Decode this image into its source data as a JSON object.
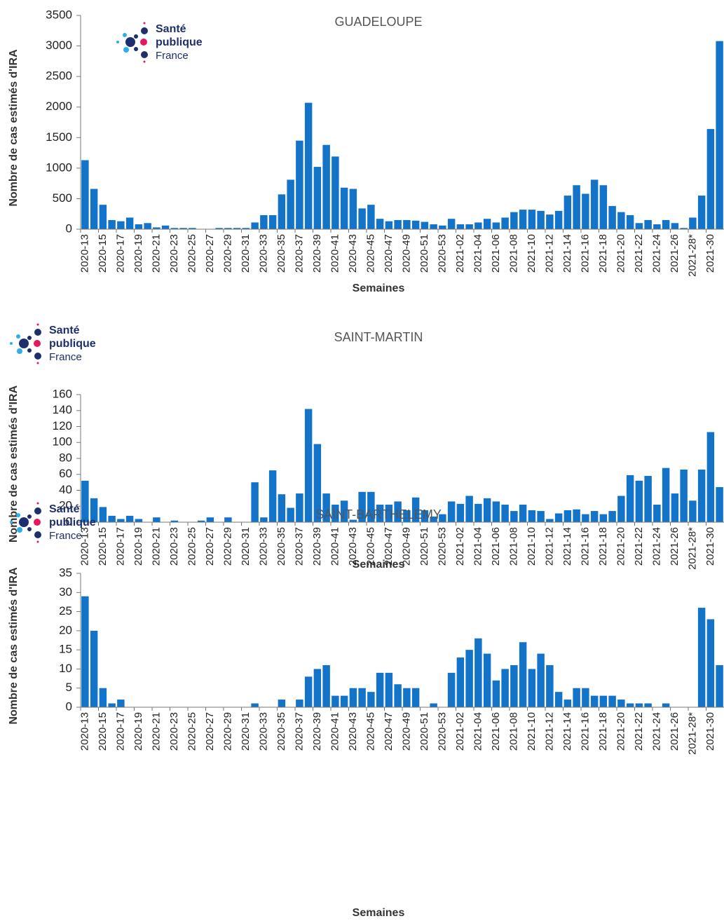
{
  "logo": [
    "Santé",
    "publique",
    "France"
  ],
  "chart_data": [
    {
      "type": "bar",
      "title": "GUADELOUPE",
      "x_label": "Semaines",
      "y_label": "Nombre de cas estimés d'IRA",
      "color": "#1273c9",
      "categories": [
        "2020-13",
        null,
        "2020-15",
        null,
        "2020-17",
        null,
        "2020-19",
        null,
        "2020-21",
        null,
        "2020-23",
        null,
        "2020-25",
        null,
        "2020-27",
        null,
        "2020-29",
        null,
        "2020-31",
        null,
        "2020-33",
        null,
        "2020-35",
        null,
        "2020-37",
        null,
        "2020-39",
        null,
        "2020-41",
        null,
        "2020-43",
        null,
        "2020-45",
        null,
        "2020-47",
        null,
        "2020-49",
        null,
        "2020-51",
        null,
        "2020-53",
        null,
        "2021-02",
        null,
        "2021-04",
        null,
        "2021-06",
        null,
        "2021-08",
        null,
        "2021-10",
        null,
        "2021-12",
        null,
        "2021-14",
        null,
        "2021-16",
        null,
        "2021-18",
        null,
        "2021-20",
        null,
        "2021-22",
        null,
        "2021-24",
        null,
        "2021-26",
        null,
        "2021-28*",
        null,
        "2021-30",
        null
      ],
      "values": [
        1130,
        660,
        400,
        150,
        130,
        190,
        80,
        100,
        30,
        60,
        20,
        20,
        20,
        0,
        0,
        20,
        20,
        20,
        20,
        110,
        230,
        230,
        570,
        810,
        1450,
        2070,
        1020,
        1380,
        1190,
        680,
        660,
        340,
        400,
        170,
        130,
        150,
        150,
        140,
        120,
        80,
        60,
        170,
        80,
        80,
        110,
        170,
        110,
        190,
        280,
        320,
        320,
        300,
        240,
        300,
        550,
        720,
        580,
        810,
        720,
        380,
        280,
        230,
        100,
        150,
        80,
        150,
        100,
        20,
        190,
        550,
        1640,
        3080
      ],
      "ylim": [
        0,
        3500
      ],
      "yticks": [
        0,
        500,
        1000,
        1500,
        2000,
        2500,
        3000,
        3500
      ]
    },
    {
      "type": "bar",
      "title": "SAINT-MARTIN",
      "x_label": "Semaines",
      "y_label": "Nombre de cas estimés d'IRA",
      "color": "#1273c9",
      "categories": [
        "2020-13",
        null,
        "2020-15",
        null,
        "2020-17",
        null,
        "2020-19",
        null,
        "2020-21",
        null,
        "2020-23",
        null,
        "2020-25",
        null,
        "2020-27",
        null,
        "2020-29",
        null,
        "2020-31",
        null,
        "2020-33",
        null,
        "2020-35",
        null,
        "2020-37",
        null,
        "2020-39",
        null,
        "2020-41",
        null,
        "2020-43",
        null,
        "2020-45",
        null,
        "2020-47",
        null,
        "2020-49",
        null,
        "2020-51",
        null,
        "2020-53",
        null,
        "2021-02",
        null,
        "2021-04",
        null,
        "2021-06",
        null,
        "2021-08",
        null,
        "2021-10",
        null,
        "2021-12",
        null,
        "2021-14",
        null,
        "2021-16",
        null,
        "2021-18",
        null,
        "2021-20",
        null,
        "2021-22",
        null,
        "2021-24",
        null,
        "2021-26",
        null,
        "2021-28*",
        null,
        "2021-30",
        null
      ],
      "values": [
        52,
        30,
        19,
        8,
        4,
        8,
        4,
        0,
        6,
        0,
        2,
        0,
        0,
        2,
        6,
        0,
        6,
        0,
        0,
        50,
        6,
        65,
        35,
        18,
        36,
        142,
        98,
        36,
        22,
        27,
        3,
        38,
        38,
        22,
        22,
        26,
        15,
        31,
        15,
        7,
        10,
        26,
        23,
        33,
        23,
        30,
        26,
        22,
        14,
        22,
        15,
        14,
        4,
        11,
        15,
        16,
        10,
        14,
        10,
        14,
        33,
        59,
        52,
        58,
        22,
        68,
        36,
        66,
        27,
        66,
        113,
        44
      ],
      "ylim": [
        0,
        160
      ],
      "yticks": [
        0,
        20,
        40,
        60,
        80,
        100,
        120,
        140,
        160
      ]
    },
    {
      "type": "bar",
      "title": "SAINT-BARTHELEMY",
      "x_label": "Semaines",
      "y_label": "Nombre de cas estimés d'IRA",
      "color": "#1273c9",
      "categories": [
        "2020-13",
        null,
        "2020-15",
        null,
        "2020-17",
        null,
        "2020-19",
        null,
        "2020-21",
        null,
        "2020-23",
        null,
        "2020-25",
        null,
        "2020-27",
        null,
        "2020-29",
        null,
        "2020-31",
        null,
        "2020-33",
        null,
        "2020-35",
        null,
        "2020-37",
        null,
        "2020-39",
        null,
        "2020-41",
        null,
        "2020-43",
        null,
        "2020-45",
        null,
        "2020-47",
        null,
        "2020-49",
        null,
        "2020-51",
        null,
        "2020-53",
        null,
        "2021-02",
        null,
        "2021-04",
        null,
        "2021-06",
        null,
        "2021-08",
        null,
        "2021-10",
        null,
        "2021-12",
        null,
        "2021-14",
        null,
        "2021-16",
        null,
        "2021-18",
        null,
        "2021-20",
        null,
        "2021-22",
        null,
        "2021-24",
        null,
        "2021-26",
        null,
        "2021-28*",
        null,
        "2021-30",
        null
      ],
      "values": [
        29,
        20,
        5,
        1,
        2,
        0,
        0,
        0,
        0,
        0,
        0,
        0,
        0,
        0,
        0,
        0,
        0,
        0,
        0,
        1,
        0,
        0,
        2,
        0,
        2,
        8,
        10,
        11,
        3,
        3,
        5,
        5,
        4,
        9,
        9,
        6,
        5,
        5,
        0,
        1,
        0,
        9,
        13,
        15,
        18,
        14,
        7,
        10,
        11,
        17,
        10,
        14,
        11,
        4,
        2,
        5,
        5,
        3,
        3,
        3,
        2,
        1,
        1,
        1,
        0,
        1,
        0,
        0,
        0,
        26,
        23,
        11
      ],
      "ylim": [
        0,
        35
      ],
      "yticks": [
        0,
        5,
        10,
        15,
        20,
        25,
        30,
        35
      ]
    }
  ]
}
